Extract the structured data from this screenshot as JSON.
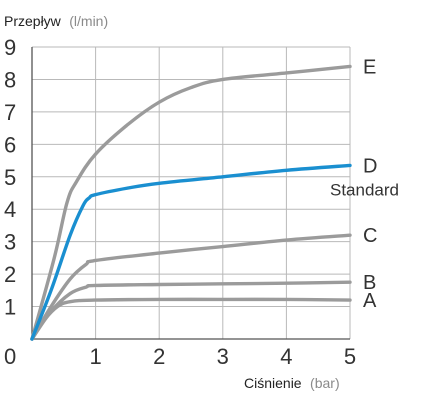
{
  "chart_data": {
    "type": "line",
    "ylabel": "Przepływ",
    "ylabel_unit": "(l/min)",
    "xlabel": "Ciśnienie",
    "xlabel_unit": "(bar)",
    "xlim": [
      0,
      5
    ],
    "ylim": [
      0,
      9
    ],
    "x_ticks": [
      "0",
      "1",
      "2",
      "3",
      "4",
      "5"
    ],
    "y_ticks": [
      "1",
      "2",
      "3",
      "4",
      "5",
      "6",
      "7",
      "8",
      "9"
    ],
    "grid": true,
    "colors": {
      "gray": "#9b9b9b",
      "blue": "#1a8fd0",
      "grid": "#b9b9b9",
      "axis": "#555555"
    },
    "series": [
      {
        "name": "A",
        "color": "gray",
        "points": [
          [
            0,
            0
          ],
          [
            0.2,
            0.6
          ],
          [
            0.4,
            1.0
          ],
          [
            0.6,
            1.15
          ],
          [
            1,
            1.2
          ],
          [
            2,
            1.22
          ],
          [
            3,
            1.22
          ],
          [
            4,
            1.22
          ],
          [
            5,
            1.2
          ]
        ]
      },
      {
        "name": "B",
        "color": "gray",
        "points": [
          [
            0,
            0
          ],
          [
            0.3,
            0.85
          ],
          [
            0.6,
            1.4
          ],
          [
            0.85,
            1.6
          ],
          [
            1,
            1.65
          ],
          [
            2,
            1.68
          ],
          [
            3,
            1.7
          ],
          [
            4,
            1.72
          ],
          [
            5,
            1.75
          ]
        ]
      },
      {
        "name": "C",
        "color": "gray",
        "points": [
          [
            0,
            0
          ],
          [
            0.3,
            1.0
          ],
          [
            0.6,
            1.85
          ],
          [
            0.85,
            2.3
          ],
          [
            1,
            2.42
          ],
          [
            2,
            2.65
          ],
          [
            3,
            2.85
          ],
          [
            4,
            3.05
          ],
          [
            5,
            3.2
          ]
        ]
      },
      {
        "name": "D",
        "sublabel": "Standard",
        "color": "blue",
        "points": [
          [
            0,
            0
          ],
          [
            0.3,
            1.5
          ],
          [
            0.6,
            3.2
          ],
          [
            0.8,
            4.1
          ],
          [
            0.9,
            4.35
          ],
          [
            1,
            4.45
          ],
          [
            1.5,
            4.65
          ],
          [
            2,
            4.8
          ],
          [
            3,
            5.0
          ],
          [
            4,
            5.2
          ],
          [
            5,
            5.35
          ]
        ]
      },
      {
        "name": "E",
        "color": "gray",
        "points": [
          [
            0,
            0
          ],
          [
            0.35,
            2.5
          ],
          [
            0.55,
            4.2
          ],
          [
            0.7,
            4.85
          ],
          [
            1,
            5.7
          ],
          [
            1.5,
            6.6
          ],
          [
            2,
            7.3
          ],
          [
            2.5,
            7.75
          ],
          [
            3,
            8.0
          ],
          [
            4,
            8.2
          ],
          [
            5,
            8.4
          ]
        ]
      }
    ]
  }
}
